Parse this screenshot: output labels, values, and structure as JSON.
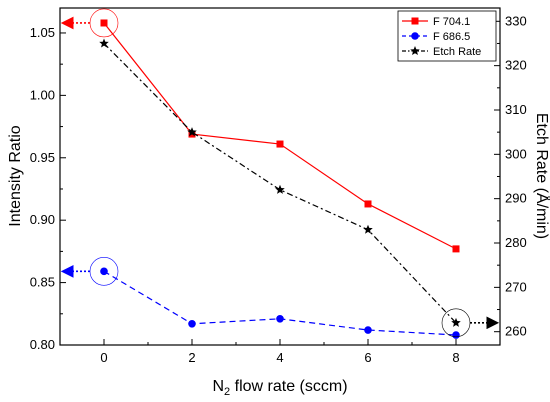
{
  "chart_data": {
    "type": "line",
    "xlabel_main": "N",
    "xlabel_sub": "2",
    "xlabel_rest": " flow rate (sccm)",
    "ylabel_left": "Intensity Ratio",
    "ylabel_right": "Etch Rate (Å/min)",
    "x": [
      0,
      2,
      4,
      6,
      8
    ],
    "xlim": [
      -1,
      9
    ],
    "ylim_left": [
      0.8,
      1.07
    ],
    "ylim_right": [
      257,
      333
    ],
    "xticks": [
      "0",
      "2",
      "4",
      "6",
      "8"
    ],
    "yticks_left": [
      "0.80",
      "0.85",
      "0.90",
      "0.95",
      "1.00",
      "1.05"
    ],
    "yticks_right": [
      "260",
      "270",
      "280",
      "290",
      "300",
      "310",
      "320",
      "330"
    ],
    "grid": false,
    "legend_position": "top-right",
    "series": [
      {
        "name": "F 704.1",
        "axis": "left",
        "color": "#ff0000",
        "marker": "square",
        "line": "solid",
        "values": [
          1.058,
          0.969,
          0.961,
          0.913,
          0.877
        ]
      },
      {
        "name": "F 686.5",
        "axis": "left",
        "color": "#0000ff",
        "marker": "circle",
        "line": "dashed",
        "values": [
          0.859,
          0.817,
          0.821,
          0.812,
          0.808
        ]
      },
      {
        "name": "Etch Rate",
        "axis": "right",
        "color": "#000000",
        "marker": "star",
        "line": "dashdot",
        "values": [
          325,
          305,
          292,
          283,
          262
        ]
      }
    ],
    "annotations": [
      {
        "type": "circle-with-arrow",
        "x": 0,
        "axis": "left",
        "y": 1.058,
        "color": "#ff0000",
        "direction": "left"
      },
      {
        "type": "circle-with-arrow",
        "x": 0,
        "axis": "left",
        "y": 0.859,
        "color": "#0000ff",
        "direction": "left"
      },
      {
        "type": "circle-with-arrow",
        "x": 8,
        "axis": "right",
        "y": 262,
        "color": "#000000",
        "direction": "right"
      }
    ]
  }
}
